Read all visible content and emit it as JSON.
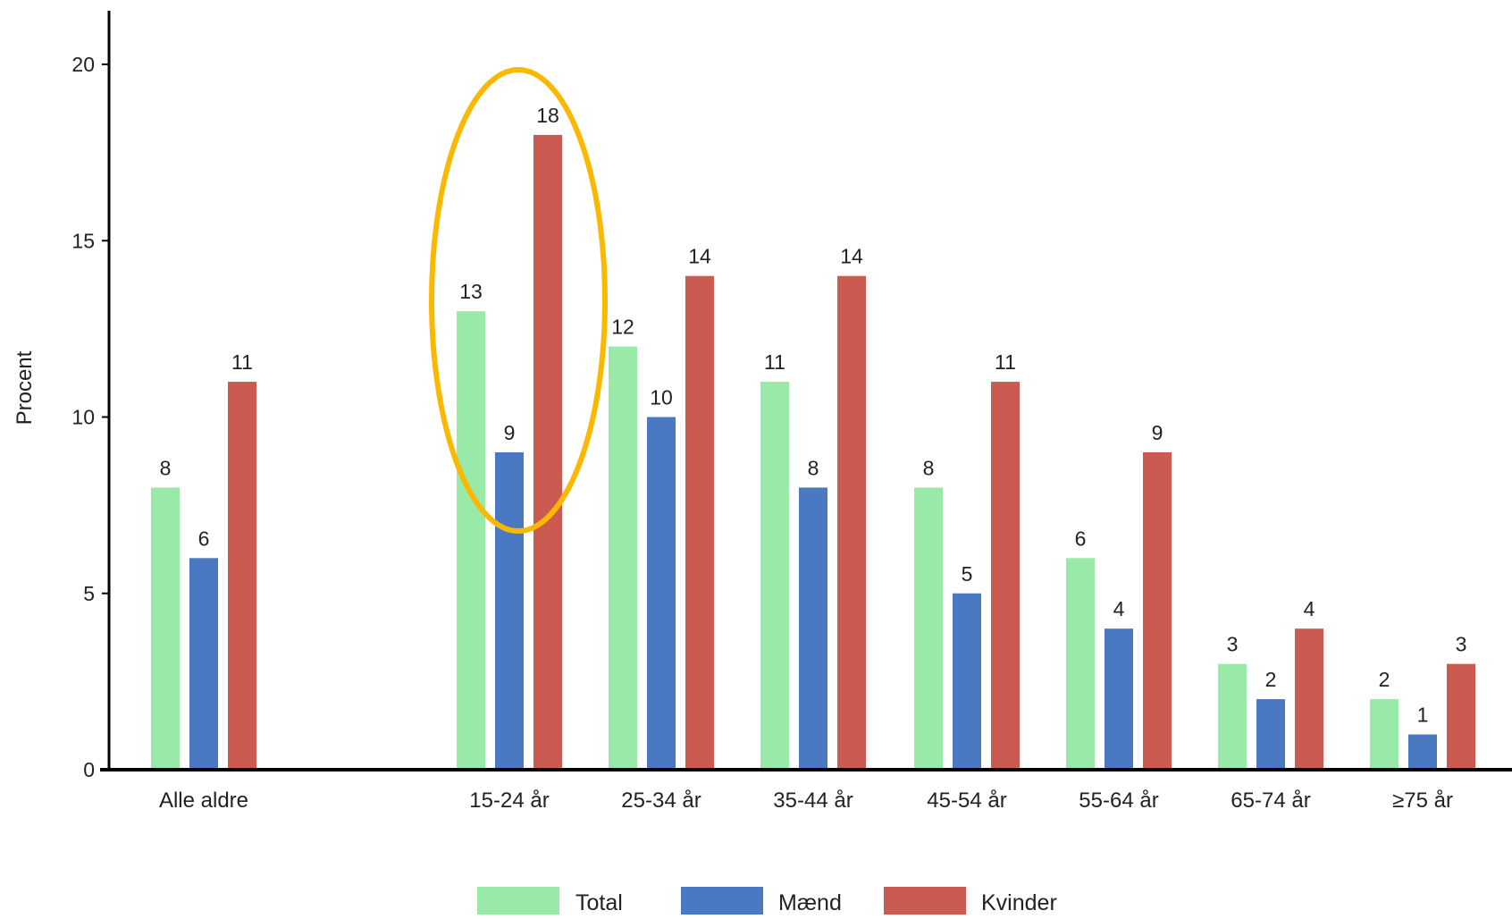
{
  "chart_data": {
    "type": "bar",
    "ylabel": "Procent",
    "xlabel": "",
    "ylim": [
      0,
      21
    ],
    "yticks": [
      0,
      5,
      10,
      15,
      20
    ],
    "categories": [
      "Alle aldre",
      "15-24 år",
      "25-34 år",
      "35-44 år",
      "45-54 år",
      "55-64 år",
      "65-74 år",
      "≥75 år"
    ],
    "series": [
      {
        "name": "Total",
        "color": "#99eaa8",
        "values": [
          8,
          13,
          12,
          11,
          8,
          6,
          3,
          2
        ]
      },
      {
        "name": "Mænd",
        "color": "#4a78c2",
        "values": [
          6,
          9,
          10,
          8,
          5,
          4,
          2,
          1
        ]
      },
      {
        "name": "Kvinder",
        "color": "#cb5a50",
        "values": [
          11,
          18,
          14,
          14,
          11,
          9,
          4,
          3
        ]
      }
    ],
    "legend_position": "bottom",
    "grid": false,
    "highlight": {
      "category": "15-24 år",
      "shape": "ellipse",
      "color": "#fbb800"
    }
  }
}
